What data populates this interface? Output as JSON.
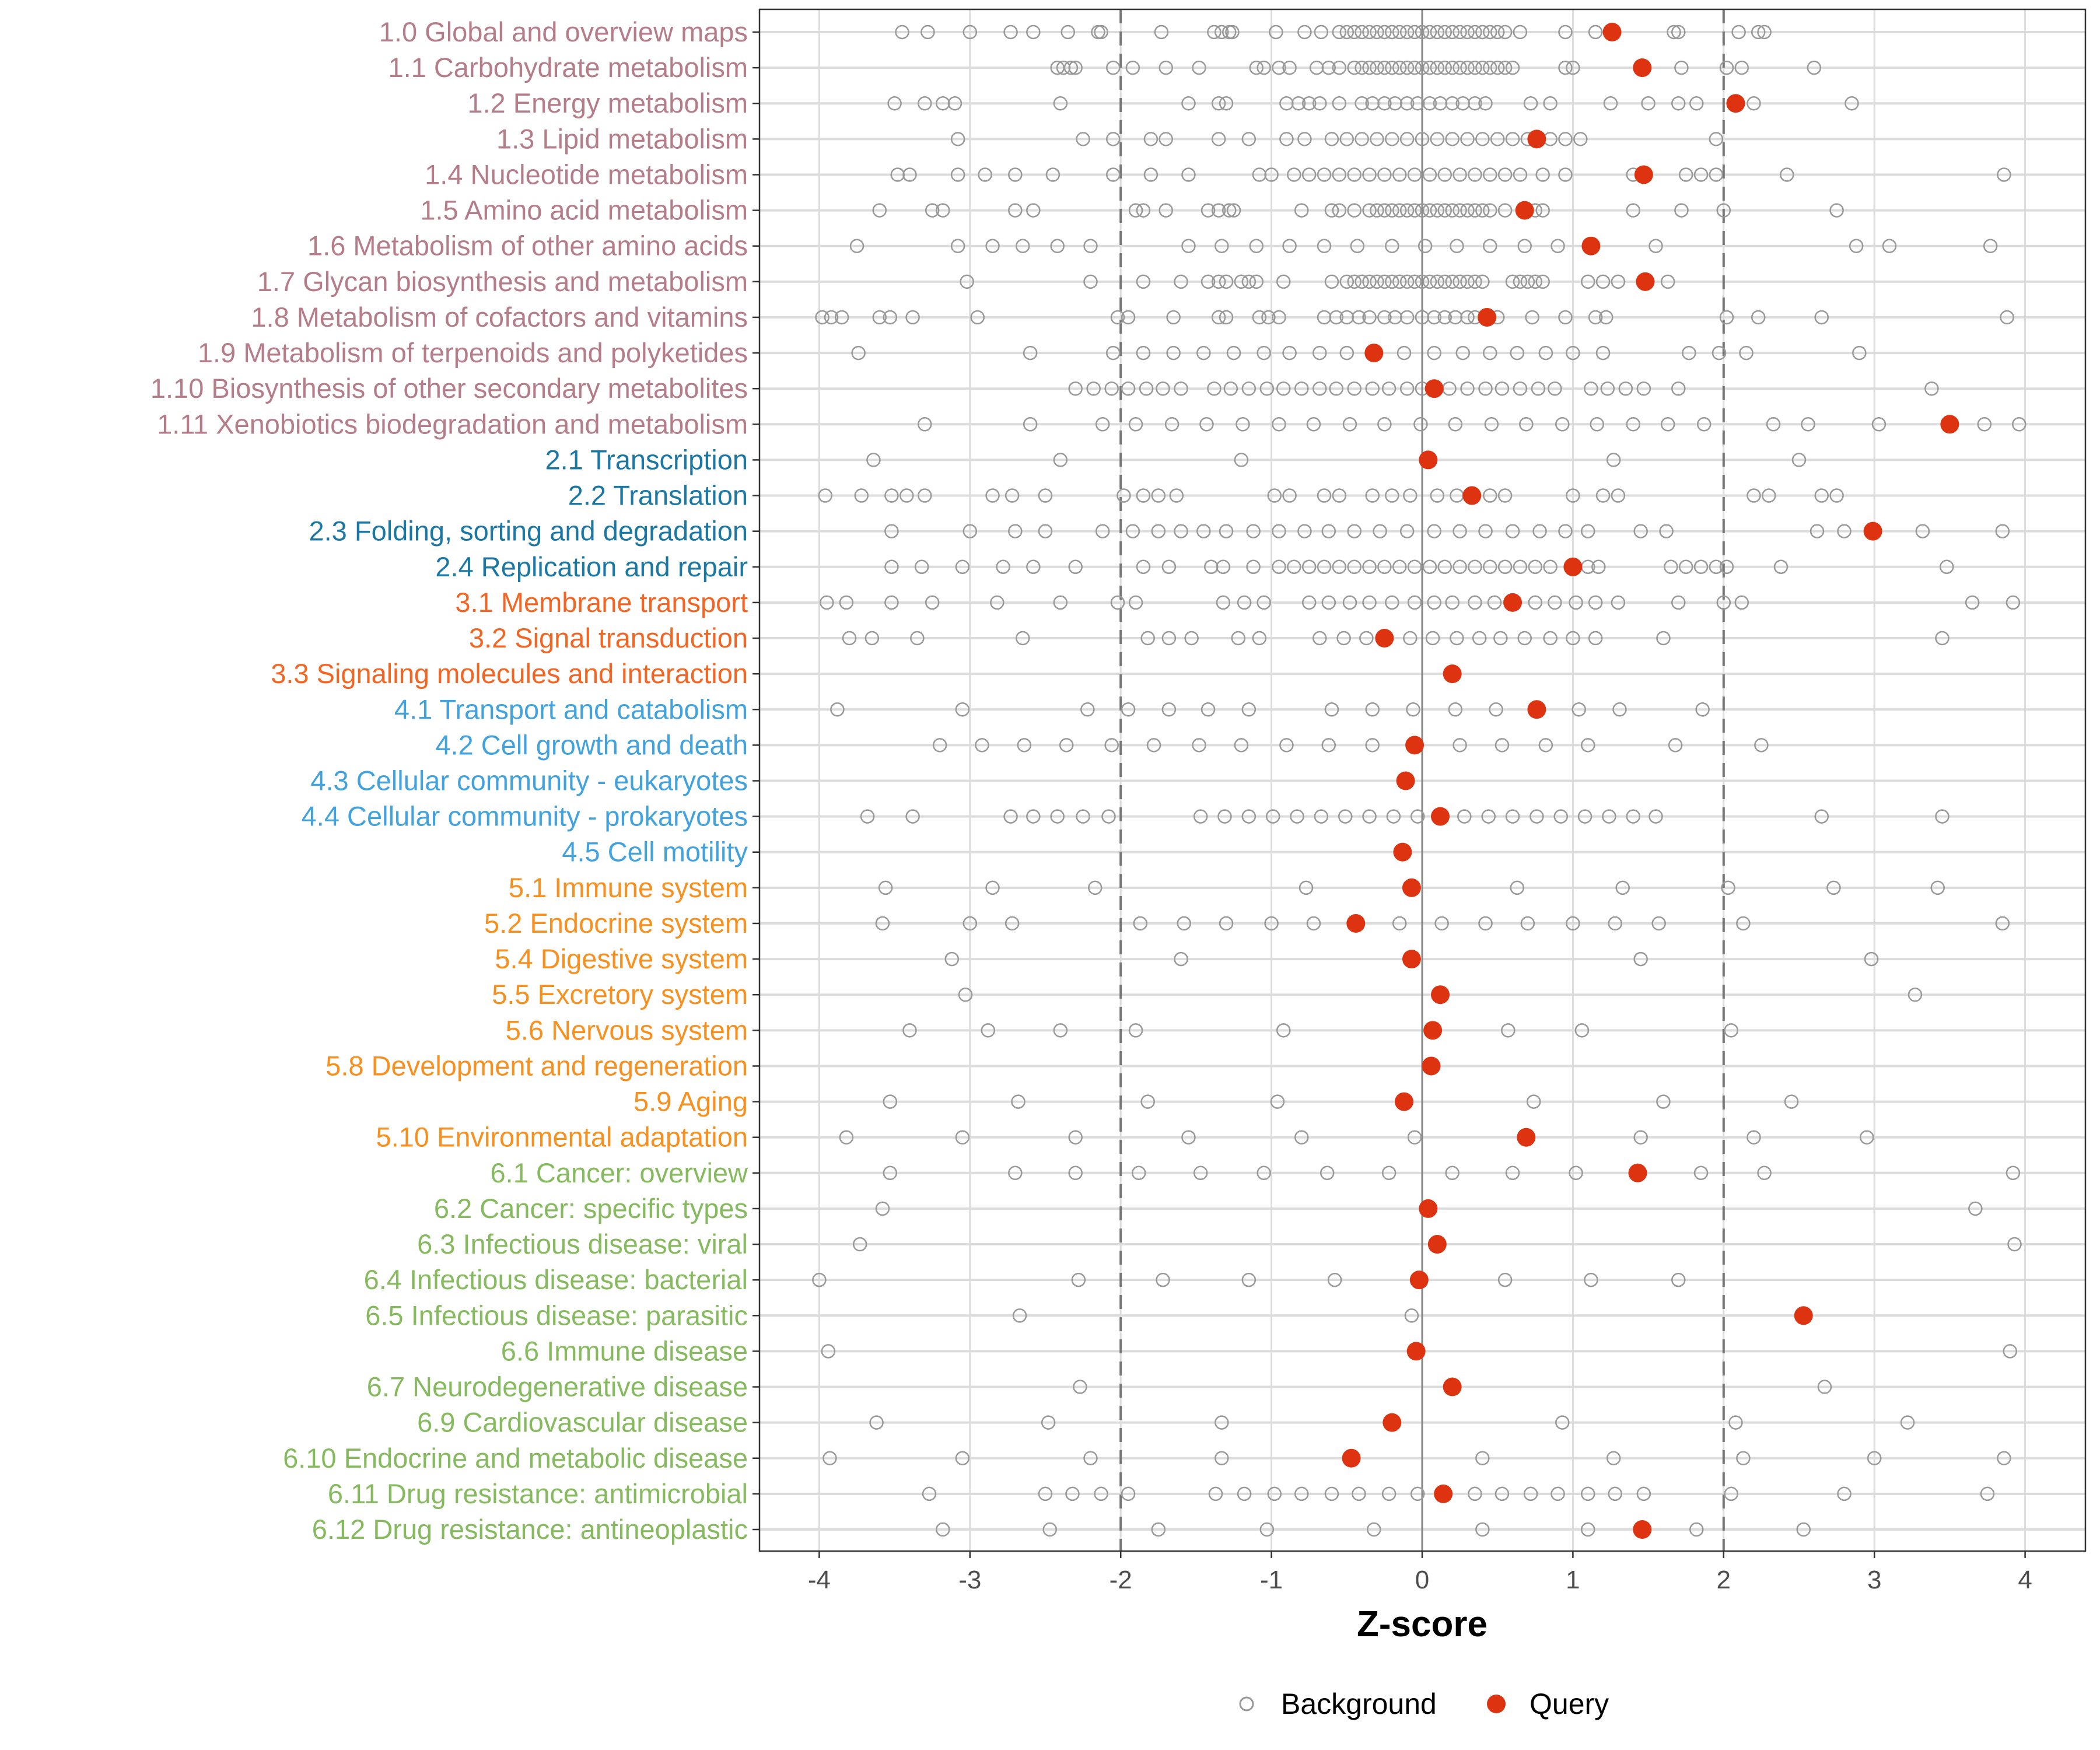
{
  "chart_data": {
    "type": "scatter",
    "title": "",
    "xlabel": "Z-score",
    "ylabel": "",
    "xlim": [
      -4.4,
      4.4
    ],
    "xticks": [
      -4,
      -3,
      -2,
      -1,
      0,
      1,
      2,
      3,
      4
    ],
    "xtick_labels": [
      "-4",
      "-3",
      "-2",
      "-1",
      "0",
      "1",
      "2",
      "3",
      "4"
    ],
    "reference_lines": [
      {
        "x": -2,
        "style": "dashed"
      },
      {
        "x": 0,
        "style": "solid"
      },
      {
        "x": 2,
        "style": "dashed"
      }
    ],
    "grid": true,
    "legend": {
      "position": "bottom",
      "entries": [
        {
          "name": "Background",
          "marker": "open-circle",
          "color": "#999999"
        },
        {
          "name": "Query",
          "marker": "filled-circle",
          "color": "#DD3311"
        }
      ]
    },
    "group_colors": {
      "1": "#B57D89",
      "2": "#1B77A3",
      "3": "#F26522",
      "4": "#41A2DD",
      "5": "#F7901E",
      "6": "#86BA5E"
    },
    "categories": [
      {
        "label": "1.0 Global and overview maps",
        "group": "1",
        "query": 1.26,
        "background": [
          -3.45,
          -3.28,
          -3.0,
          -2.73,
          -2.58,
          -2.35,
          -2.15,
          -2.13,
          -1.73,
          -1.38,
          -1.33,
          -1.28,
          -1.26,
          -0.97,
          -0.78,
          -0.67,
          -0.55,
          -0.5,
          -0.45,
          -0.4,
          -0.35,
          -0.3,
          -0.25,
          -0.2,
          -0.15,
          -0.1,
          -0.05,
          0,
          0.05,
          0.1,
          0.15,
          0.2,
          0.25,
          0.3,
          0.35,
          0.4,
          0.45,
          0.5,
          0.55,
          0.65,
          0.95,
          1.15,
          1.67,
          1.7,
          2.1,
          2.23,
          2.27
        ]
      },
      {
        "label": "1.1 Carbohydrate metabolism",
        "group": "1",
        "query": 1.46,
        "background": [
          -2.42,
          -2.38,
          -2.33,
          -2.3,
          -2.05,
          -1.92,
          -1.7,
          -1.48,
          -1.1,
          -1.05,
          -0.95,
          -0.88,
          -0.7,
          -0.62,
          -0.55,
          -0.45,
          -0.4,
          -0.35,
          -0.3,
          -0.25,
          -0.2,
          -0.15,
          -0.1,
          -0.05,
          0,
          0.05,
          0.1,
          0.15,
          0.2,
          0.25,
          0.3,
          0.35,
          0.4,
          0.45,
          0.5,
          0.55,
          0.6,
          0.95,
          1.0,
          1.72,
          2.02,
          2.12,
          2.6
        ]
      },
      {
        "label": "1.2 Energy metabolism",
        "group": "1",
        "query": 2.08,
        "background": [
          -3.5,
          -3.3,
          -3.18,
          -3.1,
          -2.4,
          -1.55,
          -1.35,
          -1.3,
          -0.9,
          -0.82,
          -0.75,
          -0.68,
          -0.55,
          -0.4,
          -0.33,
          -0.25,
          -0.18,
          -0.1,
          -0.03,
          0.05,
          0.12,
          0.2,
          0.27,
          0.35,
          0.42,
          0.72,
          0.85,
          1.25,
          1.5,
          1.7,
          1.82,
          2.2,
          2.85
        ]
      },
      {
        "label": "1.3 Lipid metabolism",
        "group": "1",
        "query": 0.76,
        "background": [
          -3.08,
          -2.25,
          -2.05,
          -1.8,
          -1.7,
          -1.35,
          -1.15,
          -0.9,
          -0.78,
          -0.6,
          -0.5,
          -0.4,
          -0.3,
          -0.2,
          -0.1,
          0,
          0.1,
          0.2,
          0.3,
          0.4,
          0.5,
          0.6,
          0.7,
          0.85,
          0.95,
          1.05,
          1.95
        ]
      },
      {
        "label": "1.4 Nucleotide metabolism",
        "group": "1",
        "query": 1.47,
        "background": [
          -3.48,
          -3.4,
          -3.08,
          -2.9,
          -2.7,
          -2.45,
          -2.05,
          -1.8,
          -1.55,
          -1.08,
          -1.0,
          -0.85,
          -0.75,
          -0.65,
          -0.55,
          -0.45,
          -0.35,
          -0.25,
          -0.15,
          -0.05,
          0.05,
          0.15,
          0.25,
          0.35,
          0.45,
          0.55,
          0.65,
          0.8,
          0.95,
          1.4,
          1.75,
          1.85,
          1.95,
          2.42,
          3.86
        ]
      },
      {
        "label": "1.5 Amino acid metabolism",
        "group": "1",
        "query": 0.68,
        "background": [
          -3.6,
          -3.25,
          -3.18,
          -2.7,
          -2.58,
          -1.9,
          -1.85,
          -1.7,
          -1.42,
          -1.35,
          -1.28,
          -1.25,
          -0.8,
          -0.6,
          -0.55,
          -0.45,
          -0.35,
          -0.3,
          -0.25,
          -0.2,
          -0.15,
          -0.1,
          -0.05,
          0,
          0.05,
          0.1,
          0.15,
          0.2,
          0.25,
          0.3,
          0.35,
          0.4,
          0.45,
          0.55,
          0.75,
          0.8,
          1.4,
          1.72,
          2.0,
          2.75
        ]
      },
      {
        "label": "1.6 Metabolism of other amino acids",
        "group": "1",
        "query": 1.12,
        "background": [
          -3.75,
          -3.08,
          -2.85,
          -2.65,
          -2.42,
          -2.2,
          -1.55,
          -1.33,
          -1.1,
          -0.88,
          -0.65,
          -0.43,
          -0.2,
          0.02,
          0.23,
          0.45,
          0.68,
          0.9,
          1.55,
          2.88,
          3.1,
          3.77
        ]
      },
      {
        "label": "1.7 Glycan biosynthesis and metabolism",
        "group": "1",
        "query": 1.48,
        "background": [
          -3.02,
          -2.2,
          -1.85,
          -1.6,
          -1.42,
          -1.35,
          -1.3,
          -1.2,
          -1.15,
          -1.1,
          -0.92,
          -0.6,
          -0.5,
          -0.45,
          -0.4,
          -0.35,
          -0.3,
          -0.25,
          -0.2,
          -0.15,
          -0.1,
          -0.05,
          0,
          0.05,
          0.1,
          0.15,
          0.2,
          0.25,
          0.3,
          0.35,
          0.4,
          0.6,
          0.65,
          0.7,
          0.75,
          0.8,
          1.1,
          1.2,
          1.3,
          1.63
        ]
      },
      {
        "label": "1.8 Metabolism of cofactors and vitamins",
        "group": "1",
        "query": 0.43,
        "background": [
          -3.98,
          -3.92,
          -3.85,
          -3.6,
          -3.53,
          -3.38,
          -2.95,
          -2.02,
          -1.95,
          -1.65,
          -1.35,
          -1.3,
          -1.08,
          -1.02,
          -0.95,
          -0.65,
          -0.57,
          -0.5,
          -0.42,
          -0.35,
          -0.25,
          -0.18,
          -0.1,
          0.0,
          0.08,
          0.15,
          0.22,
          0.3,
          0.35,
          0.5,
          0.73,
          0.95,
          1.15,
          1.22,
          2.02,
          2.23,
          2.65,
          3.88
        ]
      },
      {
        "label": "1.9 Metabolism of terpenoids and polyketides",
        "group": "1",
        "query": -0.32,
        "background": [
          -3.74,
          -2.6,
          -2.05,
          -1.85,
          -1.65,
          -1.45,
          -1.25,
          -1.05,
          -0.88,
          -0.68,
          -0.5,
          -0.12,
          0.08,
          0.27,
          0.45,
          0.63,
          0.82,
          1.0,
          1.2,
          1.77,
          1.97,
          2.15,
          2.9
        ]
      },
      {
        "label": "1.10 Biosynthesis of other secondary metabolites",
        "group": "1",
        "query": 0.08,
        "background": [
          -2.3,
          -2.18,
          -2.06,
          -1.95,
          -1.83,
          -1.72,
          -1.6,
          -1.38,
          -1.27,
          -1.15,
          -1.03,
          -0.92,
          -0.8,
          -0.68,
          -0.57,
          -0.45,
          -0.33,
          -0.22,
          -0.1,
          0.0,
          0.18,
          0.3,
          0.42,
          0.53,
          0.65,
          0.77,
          0.88,
          1.12,
          1.23,
          1.35,
          1.47,
          1.7,
          3.38
        ]
      },
      {
        "label": "1.11 Xenobiotics biodegradation and metabolism",
        "group": "1",
        "query": 3.5,
        "background": [
          -3.3,
          -2.6,
          -2.12,
          -1.9,
          -1.66,
          -1.43,
          -1.19,
          -0.95,
          -0.72,
          -0.48,
          -0.25,
          -0.01,
          0.22,
          0.46,
          0.69,
          0.93,
          1.16,
          1.4,
          1.63,
          1.87,
          2.33,
          2.56,
          3.03,
          3.73,
          3.96
        ]
      },
      {
        "label": "2.1 Transcription",
        "group": "2",
        "query": 0.04,
        "background": [
          -3.64,
          -2.4,
          -1.2,
          1.27,
          2.5
        ]
      },
      {
        "label": "2.2 Translation",
        "group": "2",
        "query": 0.33,
        "background": [
          -3.96,
          -3.72,
          -3.52,
          -3.42,
          -3.3,
          -2.85,
          -2.72,
          -2.5,
          -1.98,
          -1.85,
          -1.75,
          -1.63,
          -0.98,
          -0.88,
          -0.65,
          -0.55,
          -0.33,
          -0.2,
          -0.08,
          0.1,
          0.23,
          0.45,
          0.55,
          1.0,
          1.2,
          1.3,
          2.2,
          2.3,
          2.65,
          2.75
        ]
      },
      {
        "label": "2.3 Folding, sorting and degradation",
        "group": "2",
        "query": 2.99,
        "background": [
          -3.52,
          -3.0,
          -2.7,
          -2.5,
          -2.12,
          -1.92,
          -1.75,
          -1.6,
          -1.45,
          -1.3,
          -1.12,
          -0.95,
          -0.78,
          -0.62,
          -0.45,
          -0.28,
          -0.1,
          0.08,
          0.25,
          0.42,
          0.6,
          0.78,
          0.95,
          1.1,
          1.45,
          1.62,
          2.62,
          2.8,
          3.32,
          3.85
        ]
      },
      {
        "label": "2.4 Replication and repair",
        "group": "2",
        "query": 1.0,
        "background": [
          -3.52,
          -3.32,
          -3.05,
          -2.78,
          -2.58,
          -2.3,
          -1.85,
          -1.68,
          -1.4,
          -1.32,
          -1.12,
          -0.95,
          -0.85,
          -0.75,
          -0.65,
          -0.55,
          -0.45,
          -0.35,
          -0.25,
          -0.15,
          -0.05,
          0.05,
          0.15,
          0.25,
          0.35,
          0.45,
          0.55,
          0.65,
          0.75,
          0.85,
          1.1,
          1.17,
          1.65,
          1.75,
          1.85,
          1.95,
          2.02,
          2.38,
          3.48
        ]
      },
      {
        "label": "3.1 Membrane transport",
        "group": "3",
        "query": 0.6,
        "background": [
          -3.95,
          -3.82,
          -3.52,
          -3.25,
          -2.82,
          -2.4,
          -2.02,
          -1.9,
          -1.32,
          -1.18,
          -1.05,
          -0.75,
          -0.62,
          -0.48,
          -0.35,
          -0.2,
          -0.05,
          0.08,
          0.2,
          0.35,
          0.48,
          0.75,
          0.88,
          1.02,
          1.15,
          1.3,
          1.7,
          2.0,
          2.12,
          3.65,
          3.92
        ]
      },
      {
        "label": "3.2 Signal transduction",
        "group": "3",
        "query": -0.25,
        "background": [
          -3.8,
          -3.65,
          -3.35,
          -2.65,
          -1.82,
          -1.68,
          -1.53,
          -1.22,
          -1.08,
          -0.68,
          -0.52,
          -0.37,
          -0.08,
          0.07,
          0.23,
          0.38,
          0.52,
          0.68,
          0.85,
          1.0,
          1.15,
          1.6,
          3.45
        ]
      },
      {
        "label": "3.3 Signaling molecules and interaction",
        "group": "3",
        "query": 0.2,
        "background": []
      },
      {
        "label": "4.1 Transport and catabolism",
        "group": "4",
        "query": 0.76,
        "background": [
          -3.88,
          -3.05,
          -2.22,
          -1.95,
          -1.68,
          -1.42,
          -1.15,
          -0.6,
          -0.33,
          -0.06,
          0.22,
          0.49,
          1.04,
          1.31,
          1.86
        ]
      },
      {
        "label": "4.2 Cell growth and death",
        "group": "4",
        "query": -0.05,
        "background": [
          -3.2,
          -2.92,
          -2.64,
          -2.36,
          -2.06,
          -1.78,
          -1.48,
          -1.2,
          -0.9,
          -0.62,
          -0.33,
          0.25,
          0.53,
          0.82,
          1.1,
          1.68,
          2.25
        ]
      },
      {
        "label": "4.3 Cellular community - eukaryotes",
        "group": "4",
        "query": -0.11,
        "background": []
      },
      {
        "label": "4.4 Cellular community - prokaryotes",
        "group": "4",
        "query": 0.12,
        "background": [
          -3.68,
          -3.38,
          -2.73,
          -2.58,
          -2.42,
          -2.25,
          -2.08,
          -1.47,
          -1.31,
          -1.15,
          -0.99,
          -0.83,
          -0.67,
          -0.51,
          -0.35,
          -0.19,
          -0.03,
          0.28,
          0.44,
          0.6,
          0.76,
          0.92,
          1.08,
          1.24,
          1.4,
          1.55,
          2.65,
          3.45
        ]
      },
      {
        "label": "4.5 Cell motility",
        "group": "4",
        "query": -0.13,
        "background": []
      },
      {
        "label": "5.1 Immune system",
        "group": "5",
        "query": -0.07,
        "background": [
          -3.56,
          -2.85,
          -2.17,
          -0.77,
          0.63,
          1.33,
          2.03,
          2.73,
          3.42
        ]
      },
      {
        "label": "5.2 Endocrine system",
        "group": "5",
        "query": -0.44,
        "background": [
          -3.58,
          -3.0,
          -2.72,
          -1.87,
          -1.58,
          -1.3,
          -1.0,
          -0.72,
          -0.15,
          0.13,
          0.42,
          0.7,
          1.0,
          1.28,
          1.57,
          2.13,
          3.85
        ]
      },
      {
        "label": "5.4 Digestive system",
        "group": "5",
        "query": -0.07,
        "background": [
          -3.12,
          -1.6,
          1.45,
          2.98
        ]
      },
      {
        "label": "5.5 Excretory system",
        "group": "5",
        "query": 0.12,
        "background": [
          -3.03,
          3.27
        ]
      },
      {
        "label": "5.6 Nervous system",
        "group": "5",
        "query": 0.07,
        "background": [
          -3.4,
          -2.88,
          -2.4,
          -1.9,
          -0.92,
          0.57,
          1.06,
          2.05
        ]
      },
      {
        "label": "5.8 Development and regeneration",
        "group": "5",
        "query": 0.06,
        "background": []
      },
      {
        "label": "5.9 Aging",
        "group": "5",
        "query": -0.12,
        "background": [
          -3.53,
          -2.68,
          -1.82,
          -0.96,
          0.74,
          1.6,
          2.45
        ]
      },
      {
        "label": "5.10 Environmental adaptation",
        "group": "5",
        "query": 0.69,
        "background": [
          -3.82,
          -3.05,
          -2.3,
          -1.55,
          -0.8,
          -0.05,
          1.45,
          2.2,
          2.95
        ]
      },
      {
        "label": "6.1 Cancer: overview",
        "group": "6",
        "query": 1.43,
        "background": [
          -3.53,
          -2.7,
          -2.3,
          -1.88,
          -1.47,
          -1.05,
          -0.63,
          -0.22,
          0.2,
          0.6,
          1.02,
          1.85,
          2.27,
          3.92
        ]
      },
      {
        "label": "6.2 Cancer: specific types",
        "group": "6",
        "query": 0.04,
        "background": [
          -3.58,
          3.67
        ]
      },
      {
        "label": "6.3 Infectious disease: viral",
        "group": "6",
        "query": 0.1,
        "background": [
          -3.73,
          3.93
        ]
      },
      {
        "label": "6.4 Infectious disease: bacterial",
        "group": "6",
        "query": -0.02,
        "background": [
          -4.0,
          -2.28,
          -1.72,
          -1.15,
          -0.58,
          0.55,
          1.12,
          1.7
        ]
      },
      {
        "label": "6.5 Infectious disease: parasitic",
        "group": "6",
        "query": 2.53,
        "background": [
          -2.67,
          -0.07
        ]
      },
      {
        "label": "6.6 Immune disease",
        "group": "6",
        "query": -0.04,
        "background": [
          -3.94,
          3.9
        ]
      },
      {
        "label": "6.7 Neurodegenerative disease",
        "group": "6",
        "query": 0.2,
        "background": [
          -2.27,
          2.67
        ]
      },
      {
        "label": "6.9 Cardiovascular disease",
        "group": "6",
        "query": -0.2,
        "background": [
          -3.62,
          -2.48,
          -1.33,
          0.93,
          2.08,
          3.22
        ]
      },
      {
        "label": "6.10 Endocrine and metabolic disease",
        "group": "6",
        "query": -0.47,
        "background": [
          -3.93,
          -3.05,
          -2.2,
          -1.33,
          0.4,
          1.27,
          2.13,
          3.0,
          3.86
        ]
      },
      {
        "label": "6.11 Drug resistance: antimicrobial",
        "group": "6",
        "query": 0.14,
        "background": [
          -3.27,
          -2.5,
          -2.32,
          -2.13,
          -1.95,
          -1.37,
          -1.18,
          -0.98,
          -0.8,
          -0.6,
          -0.42,
          -0.22,
          -0.03,
          0.35,
          0.53,
          0.72,
          0.9,
          1.1,
          1.28,
          1.47,
          2.05,
          2.8,
          3.75
        ]
      },
      {
        "label": "6.12 Drug resistance: antineoplastic",
        "group": "6",
        "query": 1.46,
        "background": [
          -3.18,
          -2.47,
          -1.75,
          -1.03,
          -0.32,
          0.4,
          1.1,
          1.82,
          2.53
        ]
      }
    ]
  }
}
